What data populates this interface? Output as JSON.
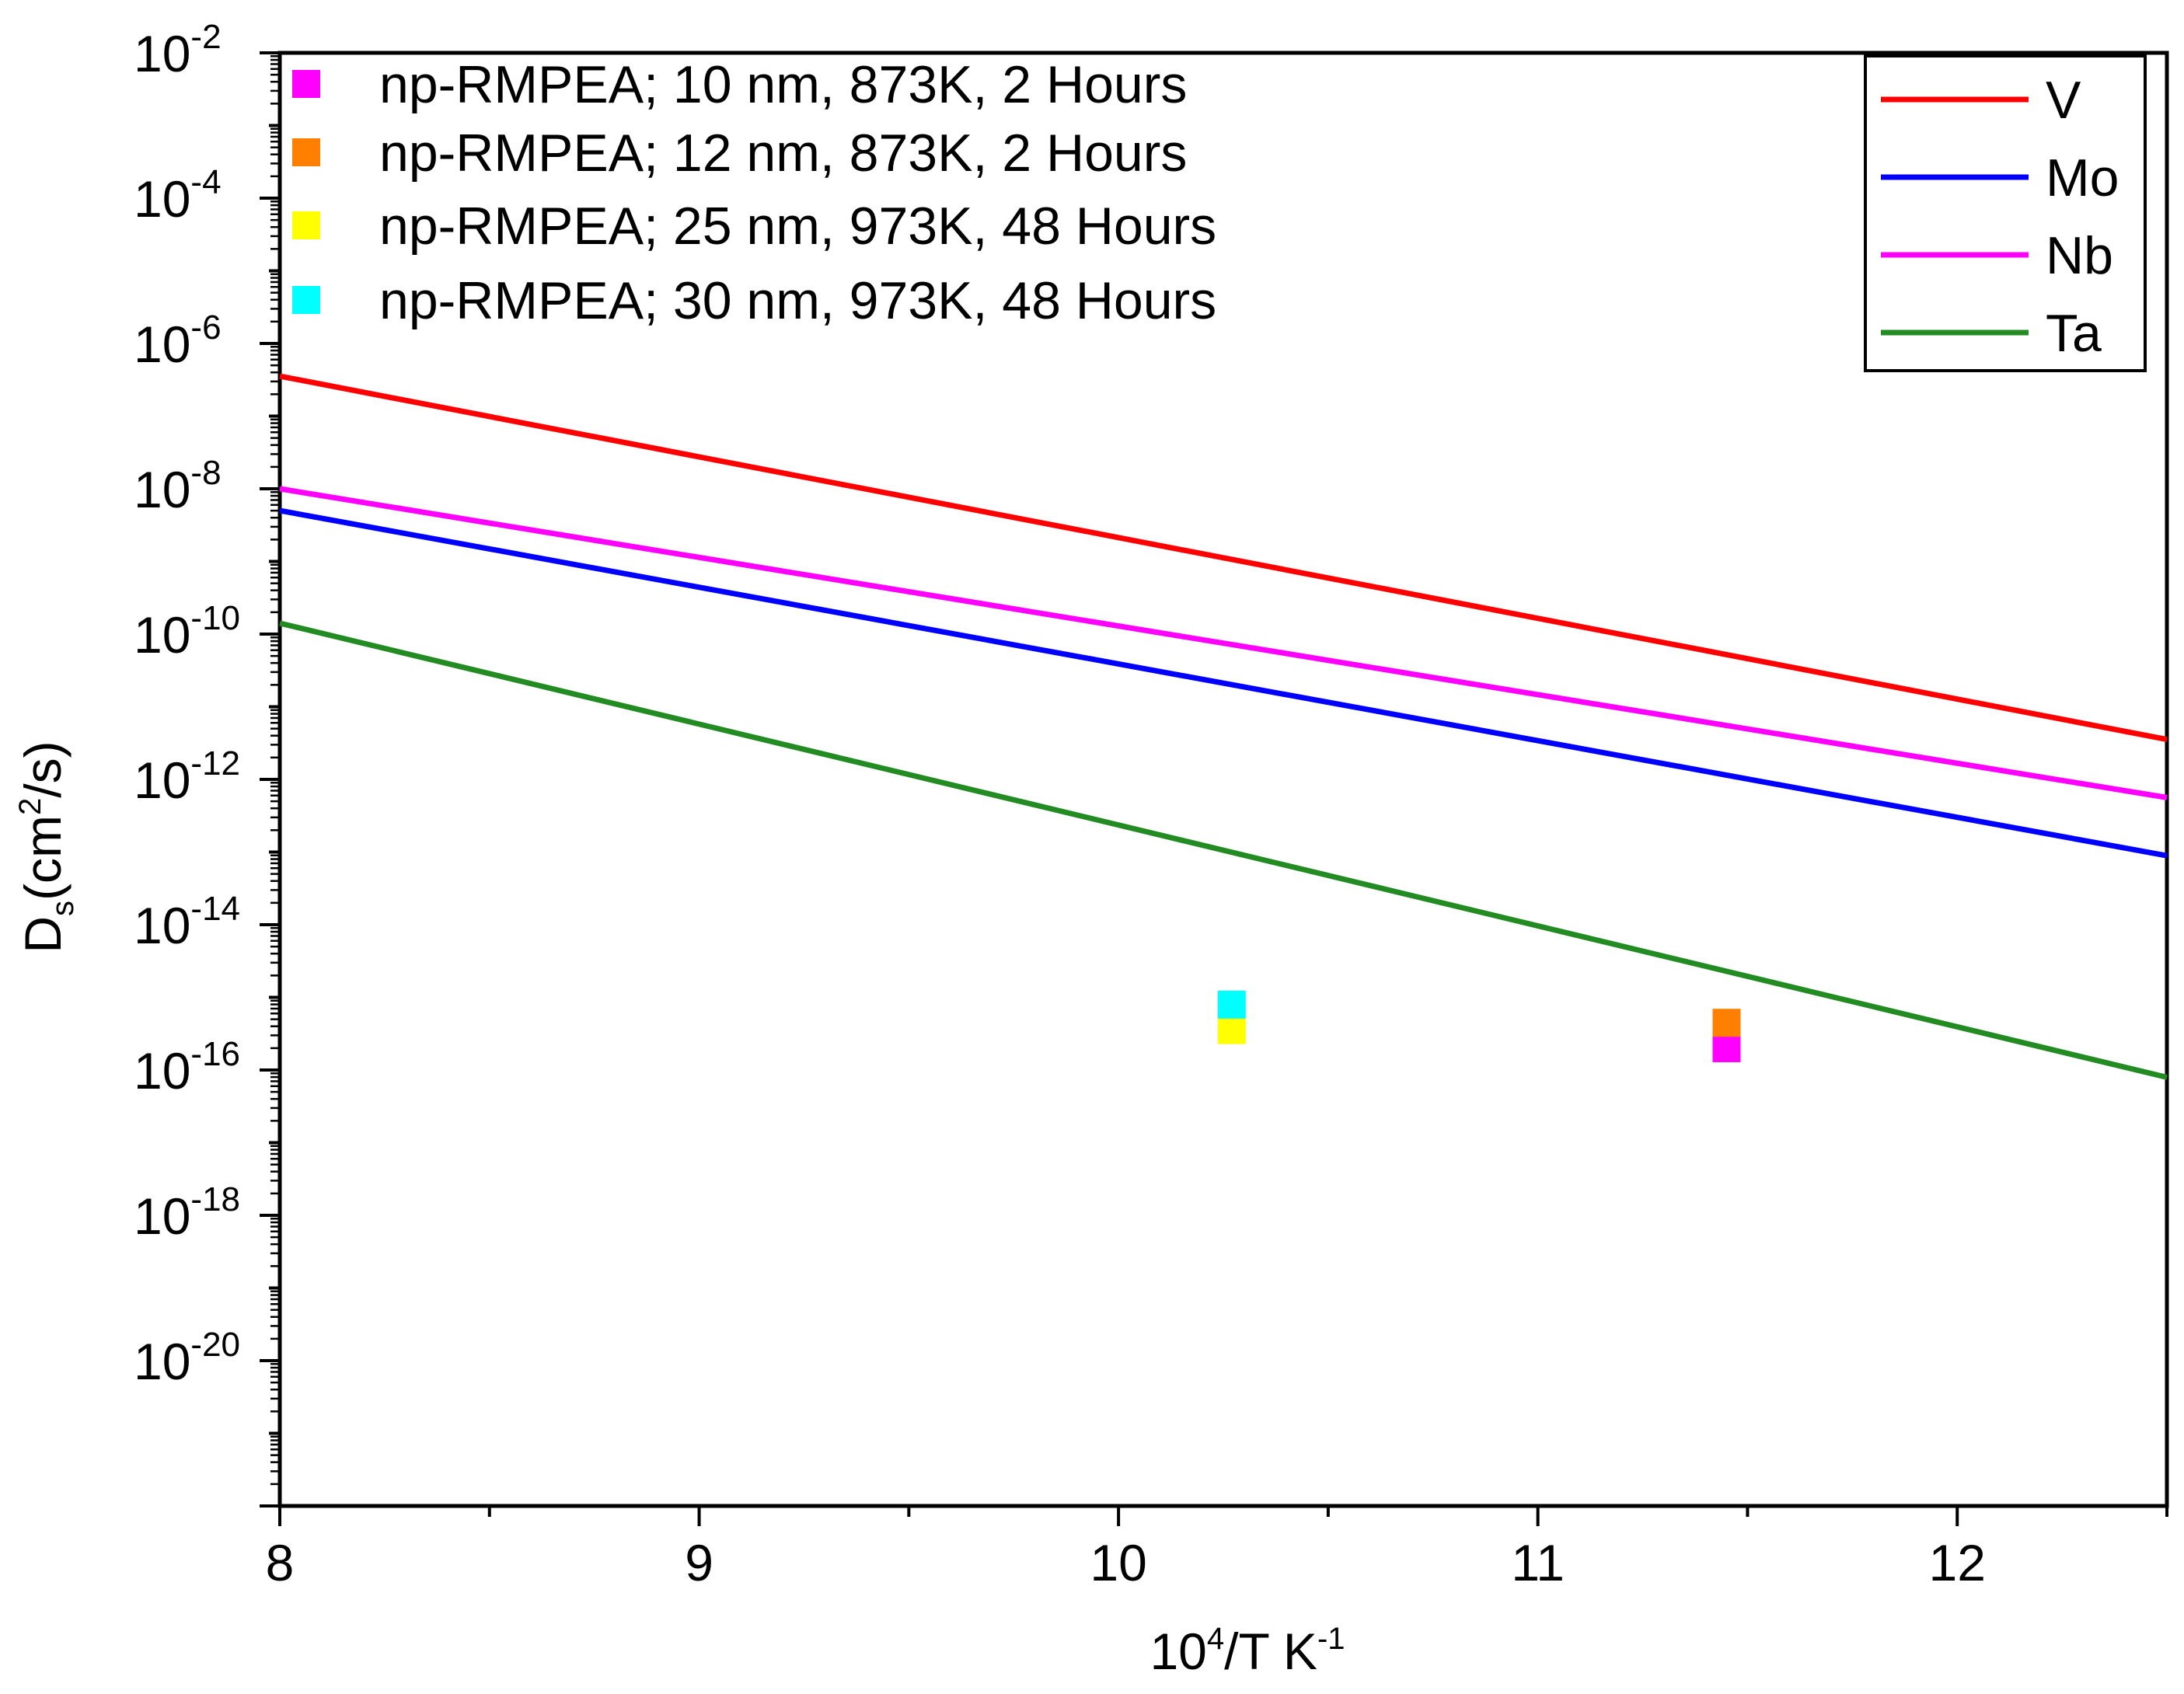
{
  "chart_data": {
    "type": "line",
    "title": "",
    "xlabel": {
      "base": "10",
      "sup": "4",
      "rest": "/T K",
      "sup2": "-1"
    },
    "ylabel": {
      "base": "D",
      "sub": "s",
      "mid": "(cm",
      "sup": "2",
      "rest": "/s)"
    },
    "xlim": [
      8,
      12.5
    ],
    "ylim_log10": [
      -22,
      -2
    ],
    "x_ticks": [
      8,
      9,
      10,
      11,
      12
    ],
    "x_tick_labels": [
      "8",
      "9",
      "10",
      "11",
      "12"
    ],
    "y_ticks_log10": [
      -2,
      -4,
      -6,
      -8,
      -10,
      -12,
      -14,
      -16,
      -18,
      -20
    ],
    "y_tick_labels": [
      {
        "base": "10",
        "exp": "-2"
      },
      {
        "base": "10",
        "exp": "-4"
      },
      {
        "base": "10",
        "exp": "-6"
      },
      {
        "base": "10",
        "exp": "-8"
      },
      {
        "base": "10",
        "exp": "-10"
      },
      {
        "base": "10",
        "exp": "-12"
      },
      {
        "base": "10",
        "exp": "-14"
      },
      {
        "base": "10",
        "exp": "-16"
      },
      {
        "base": "10",
        "exp": "-18"
      },
      {
        "base": "10",
        "exp": "-20"
      }
    ],
    "series_lines": [
      {
        "name": "V",
        "color": "#ff0000",
        "x": [
          8,
          12.5
        ],
        "log10_y": [
          -6.45,
          -11.45
        ]
      },
      {
        "name": "Mo",
        "color": "#0000ff",
        "x": [
          8,
          12.5
        ],
        "log10_y": [
          -8.3,
          -13.05
        ]
      },
      {
        "name": "Nb",
        "color": "#ff00ff",
        "x": [
          8,
          12.5
        ],
        "log10_y": [
          -8.0,
          -12.25
        ]
      },
      {
        "name": "Ta",
        "color": "#228b22",
        "x": [
          8,
          12.5
        ],
        "log10_y": [
          -9.85,
          -16.1
        ]
      }
    ],
    "series_points": [
      {
        "name": "np-RMPEA; 10 nm, 873K, 2 Hours",
        "color": "#ff00ff",
        "x": 11.45,
        "log10_y": -15.7
      },
      {
        "name": "np-RMPEA; 12 nm, 873K, 2 Hours",
        "color": "#ff7f00",
        "x": 11.45,
        "log10_y": -15.35
      },
      {
        "name": "np-RMPEA; 25 nm, 973K, 48 Hours",
        "color": "#ffff00",
        "x": 10.27,
        "log10_y": -15.45
      },
      {
        "name": "np-RMPEA; 30 nm, 973K, 48 Hours",
        "color": "#00ffff",
        "x": 10.27,
        "log10_y": -15.1
      }
    ],
    "legend_lines_placement": "top-right",
    "legend_points_placement": "top-left"
  }
}
